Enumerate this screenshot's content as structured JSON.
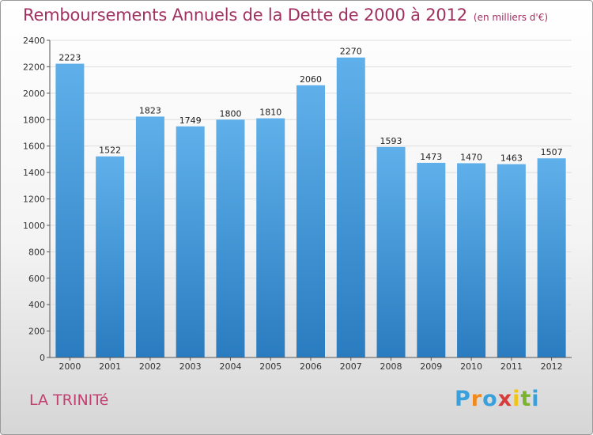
{
  "title": "Remboursements Annuels de la Dette de 2000 à 2012",
  "unit": "(en milliers d'€)",
  "commune": "LA TRINITé",
  "logo": {
    "letters": [
      "P",
      "r",
      "o",
      "x",
      "i",
      "t",
      "i"
    ],
    "colors": [
      "#3aa0dc",
      "#f08a1c",
      "#3aa0dc",
      "#d93a3a",
      "#f0c419",
      "#7ab32e",
      "#3aa0dc"
    ]
  },
  "colors": {
    "bar": "#2f80c4",
    "title": "#a0305f",
    "commune": "#c2406f"
  },
  "chart_data": {
    "type": "bar",
    "categories": [
      "2000",
      "2001",
      "2002",
      "2003",
      "2004",
      "2005",
      "2006",
      "2007",
      "2008",
      "2009",
      "2010",
      "2011",
      "2012"
    ],
    "values": [
      2223,
      1522,
      1823,
      1749,
      1800,
      1810,
      2060,
      2270,
      1593,
      1473,
      1470,
      1463,
      1507
    ],
    "ylim": [
      0,
      2400
    ],
    "yticks": [
      0,
      200,
      400,
      600,
      800,
      1000,
      1200,
      1400,
      1600,
      1800,
      2000,
      2200,
      2400
    ],
    "grid": true,
    "title": "Remboursements Annuels de la Dette de 2000 à 2012",
    "xlabel": "",
    "ylabel": ""
  }
}
